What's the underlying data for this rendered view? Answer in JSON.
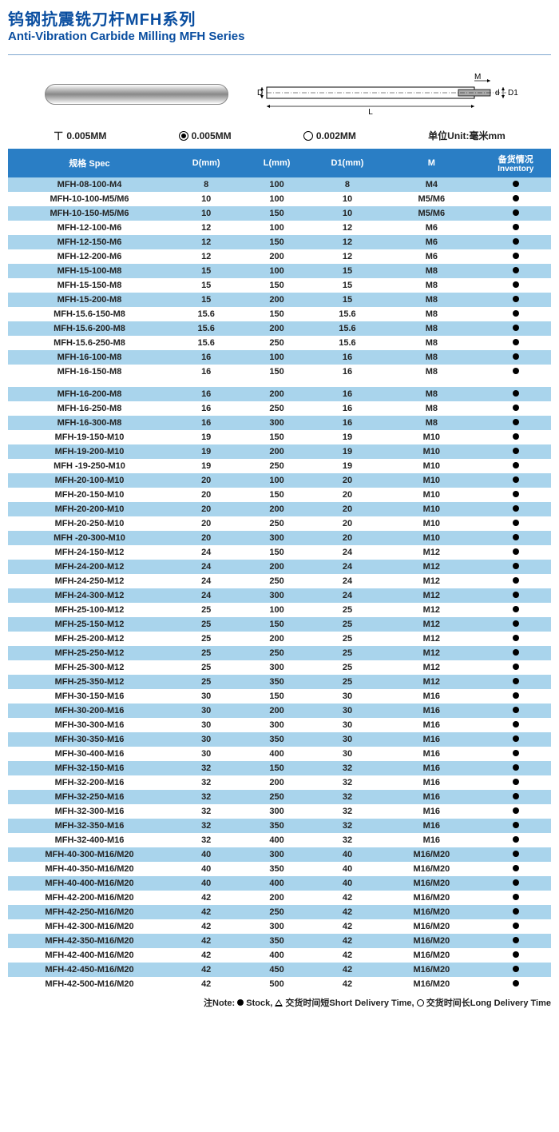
{
  "title_cn": "钨钢抗震铣刀杆MFH系列",
  "title_en": "Anti-Vibration Carbide Milling MFH Series",
  "tolerances": {
    "perp": "0.005MM",
    "conc": "0.005MM",
    "circ": "0.002MM",
    "unit": "单位Unit:毫米mm"
  },
  "diagram_labels": {
    "D": "D",
    "L": "L",
    "M": "M",
    "d": "d",
    "D1": "D1"
  },
  "columns": [
    "规格 Spec",
    "D(mm)",
    "L(mm)",
    "D1(mm)",
    "M",
    "备货情况",
    "Inventory"
  ],
  "note": {
    "prefix": "注Note:",
    "stock": "Stock,",
    "short": "交货时间短Short Delivery Time,",
    "long": "交货时间长Long Delivery Time"
  },
  "group1": [
    {
      "spec": "MFH-08-100-M4",
      "d": "8",
      "l": "100",
      "d1": "8",
      "m": "M4"
    },
    {
      "spec": "MFH-10-100-M5/M6",
      "d": "10",
      "l": "100",
      "d1": "10",
      "m": "M5/M6"
    },
    {
      "spec": "MFH-10-150-M5/M6",
      "d": "10",
      "l": "150",
      "d1": "10",
      "m": "M5/M6"
    },
    {
      "spec": "MFH-12-100-M6",
      "d": "12",
      "l": "100",
      "d1": "12",
      "m": "M6"
    },
    {
      "spec": "MFH-12-150-M6",
      "d": "12",
      "l": "150",
      "d1": "12",
      "m": "M6"
    },
    {
      "spec": "MFH-12-200-M6",
      "d": "12",
      "l": "200",
      "d1": "12",
      "m": "M6"
    },
    {
      "spec": "MFH-15-100-M8",
      "d": "15",
      "l": "100",
      "d1": "15",
      "m": "M8"
    },
    {
      "spec": "MFH-15-150-M8",
      "d": "15",
      "l": "150",
      "d1": "15",
      "m": "M8"
    },
    {
      "spec": "MFH-15-200-M8",
      "d": "15",
      "l": "200",
      "d1": "15",
      "m": "M8"
    },
    {
      "spec": "MFH-15.6-150-M8",
      "d": "15.6",
      "l": "150",
      "d1": "15.6",
      "m": "M8"
    },
    {
      "spec": "MFH-15.6-200-M8",
      "d": "15.6",
      "l": "200",
      "d1": "15.6",
      "m": "M8"
    },
    {
      "spec": "MFH-15.6-250-M8",
      "d": "15.6",
      "l": "250",
      "d1": "15.6",
      "m": "M8"
    },
    {
      "spec": "MFH-16-100-M8",
      "d": "16",
      "l": "100",
      "d1": "16",
      "m": "M8"
    },
    {
      "spec": "MFH-16-150-M8",
      "d": "16",
      "l": "150",
      "d1": "16",
      "m": "M8"
    }
  ],
  "group2": [
    {
      "spec": "MFH-16-200-M8",
      "d": "16",
      "l": "200",
      "d1": "16",
      "m": "M8"
    },
    {
      "spec": "MFH-16-250-M8",
      "d": "16",
      "l": "250",
      "d1": "16",
      "m": "M8"
    },
    {
      "spec": "MFH-16-300-M8",
      "d": "16",
      "l": "300",
      "d1": "16",
      "m": "M8"
    },
    {
      "spec": "MFH-19-150-M10",
      "d": "19",
      "l": "150",
      "d1": "19",
      "m": "M10"
    },
    {
      "spec": "MFH-19-200-M10",
      "d": "19",
      "l": "200",
      "d1": "19",
      "m": "M10"
    },
    {
      "spec": "MFH -19-250-M10",
      "d": "19",
      "l": "250",
      "d1": "19",
      "m": "M10"
    },
    {
      "spec": "MFH-20-100-M10",
      "d": "20",
      "l": "100",
      "d1": "20",
      "m": "M10"
    },
    {
      "spec": "MFH-20-150-M10",
      "d": "20",
      "l": "150",
      "d1": "20",
      "m": "M10"
    },
    {
      "spec": "MFH-20-200-M10",
      "d": "20",
      "l": "200",
      "d1": "20",
      "m": "M10"
    },
    {
      "spec": "MFH-20-250-M10",
      "d": "20",
      "l": "250",
      "d1": "20",
      "m": "M10"
    },
    {
      "spec": "MFH -20-300-M10",
      "d": "20",
      "l": "300",
      "d1": "20",
      "m": "M10"
    },
    {
      "spec": "MFH-24-150-M12",
      "d": "24",
      "l": "150",
      "d1": "24",
      "m": "M12"
    },
    {
      "spec": "MFH-24-200-M12",
      "d": "24",
      "l": "200",
      "d1": "24",
      "m": "M12"
    },
    {
      "spec": "MFH-24-250-M12",
      "d": "24",
      "l": "250",
      "d1": "24",
      "m": "M12"
    },
    {
      "spec": "MFH-24-300-M12",
      "d": "24",
      "l": "300",
      "d1": "24",
      "m": "M12"
    },
    {
      "spec": "MFH-25-100-M12",
      "d": "25",
      "l": "100",
      "d1": "25",
      "m": "M12"
    },
    {
      "spec": "MFH-25-150-M12",
      "d": "25",
      "l": "150",
      "d1": "25",
      "m": "M12"
    },
    {
      "spec": "MFH-25-200-M12",
      "d": "25",
      "l": "200",
      "d1": "25",
      "m": "M12"
    },
    {
      "spec": "MFH-25-250-M12",
      "d": "25",
      "l": "250",
      "d1": "25",
      "m": "M12"
    },
    {
      "spec": "MFH-25-300-M12",
      "d": "25",
      "l": "300",
      "d1": "25",
      "m": "M12"
    },
    {
      "spec": "MFH-25-350-M12",
      "d": "25",
      "l": "350",
      "d1": "25",
      "m": "M12"
    },
    {
      "spec": "MFH-30-150-M16",
      "d": "30",
      "l": "150",
      "d1": "30",
      "m": "M16"
    },
    {
      "spec": "MFH-30-200-M16",
      "d": "30",
      "l": "200",
      "d1": "30",
      "m": "M16"
    },
    {
      "spec": "MFH-30-300-M16",
      "d": "30",
      "l": "300",
      "d1": "30",
      "m": "M16"
    },
    {
      "spec": "MFH-30-350-M16",
      "d": "30",
      "l": "350",
      "d1": "30",
      "m": "M16"
    },
    {
      "spec": "MFH-30-400-M16",
      "d": "30",
      "l": "400",
      "d1": "30",
      "m": "M16"
    },
    {
      "spec": "MFH-32-150-M16",
      "d": "32",
      "l": "150",
      "d1": "32",
      "m": "M16"
    },
    {
      "spec": "MFH-32-200-M16",
      "d": "32",
      "l": "200",
      "d1": "32",
      "m": "M16"
    },
    {
      "spec": "MFH-32-250-M16",
      "d": "32",
      "l": "250",
      "d1": "32",
      "m": "M16"
    },
    {
      "spec": "MFH-32-300-M16",
      "d": "32",
      "l": "300",
      "d1": "32",
      "m": "M16"
    },
    {
      "spec": "MFH-32-350-M16",
      "d": "32",
      "l": "350",
      "d1": "32",
      "m": "M16"
    },
    {
      "spec": "MFH-32-400-M16",
      "d": "32",
      "l": "400",
      "d1": "32",
      "m": "M16"
    },
    {
      "spec": "MFH-40-300-M16/M20",
      "d": "40",
      "l": "300",
      "d1": "40",
      "m": "M16/M20"
    },
    {
      "spec": "MFH-40-350-M16/M20",
      "d": "40",
      "l": "350",
      "d1": "40",
      "m": "M16/M20"
    },
    {
      "spec": "MFH-40-400-M16/M20",
      "d": "40",
      "l": "400",
      "d1": "40",
      "m": "M16/M20"
    },
    {
      "spec": "MFH-42-200-M16/M20",
      "d": "42",
      "l": "200",
      "d1": "42",
      "m": "M16/M20"
    },
    {
      "spec": "MFH-42-250-M16/M20",
      "d": "42",
      "l": "250",
      "d1": "42",
      "m": "M16/M20"
    },
    {
      "spec": "MFH-42-300-M16/M20",
      "d": "42",
      "l": "300",
      "d1": "42",
      "m": "M16/M20"
    },
    {
      "spec": "MFH-42-350-M16/M20",
      "d": "42",
      "l": "350",
      "d1": "42",
      "m": "M16/M20"
    },
    {
      "spec": "MFH-42-400-M16/M20",
      "d": "42",
      "l": "400",
      "d1": "42",
      "m": "M16/M20"
    },
    {
      "spec": "MFH-42-450-M16/M20",
      "d": "42",
      "l": "450",
      "d1": "42",
      "m": "M16/M20"
    },
    {
      "spec": "MFH-42-500-M16/M20",
      "d": "42",
      "l": "500",
      "d1": "42",
      "m": "M16/M20"
    }
  ],
  "col_widths": [
    "30%",
    "13%",
    "13%",
    "13%",
    "18%",
    "13%"
  ],
  "colors": {
    "header_bg": "#2a7ec5",
    "row_even": "#a9d4ec",
    "row_odd": "#ffffff",
    "title": "#0a4ea0"
  }
}
